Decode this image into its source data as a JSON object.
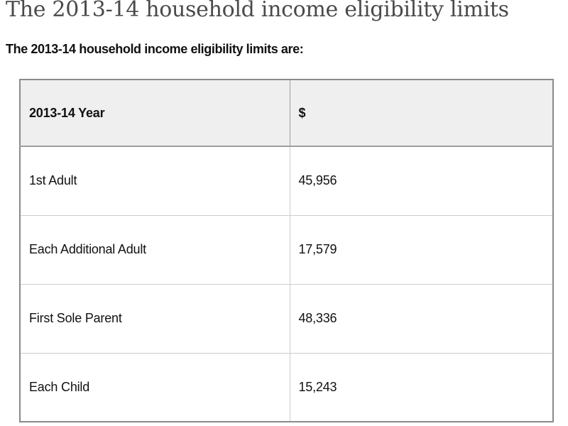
{
  "page": {
    "title": "The 2013-14 household income eligibility limits",
    "intro": "The 2013-14 household income eligibility limits are:"
  },
  "table": {
    "headers": [
      "2013-14 Year",
      "$"
    ],
    "rows": [
      {
        "label": "1st Adult",
        "value": "45,956"
      },
      {
        "label": "Each Additional Adult",
        "value": "17,579"
      },
      {
        "label": "First Sole Parent",
        "value": "48,336"
      },
      {
        "label": "Each Child",
        "value": "15,243"
      }
    ]
  },
  "colors": {
    "title": "#4a4a4a",
    "text": "#111111",
    "header_bg": "#efefef",
    "outer_border": "#8a8a8a",
    "header_border": "#9e9e9e",
    "cell_border": "#cccccc",
    "page_bg": "#ffffff"
  }
}
